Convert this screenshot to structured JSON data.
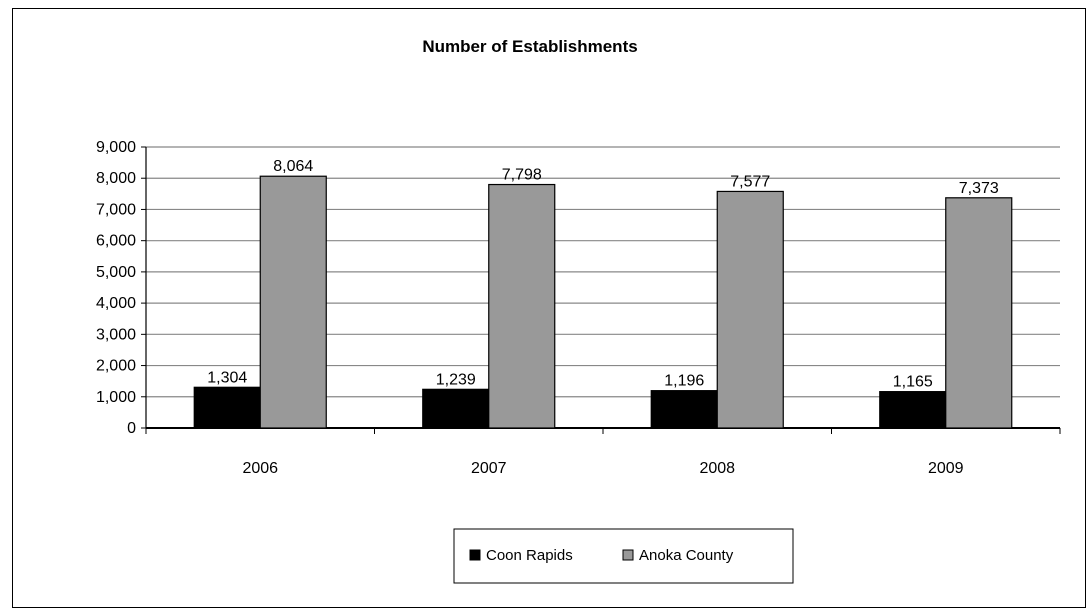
{
  "chart_data": {
    "type": "bar",
    "title": "Number of Establishments",
    "xlabel": "",
    "ylabel": "",
    "categories": [
      "2006",
      "2007",
      "2008",
      "2009"
    ],
    "series": [
      {
        "name": "Coon Rapids",
        "values": [
          1304,
          1239,
          1196,
          1165
        ],
        "labels": [
          "1,304",
          "1,239",
          "1,196",
          "1,165"
        ],
        "color": "#000000"
      },
      {
        "name": "Anoka County",
        "values": [
          8064,
          7798,
          7577,
          7373
        ],
        "labels": [
          "8,064",
          "7,798",
          "7,577",
          "7,373"
        ],
        "color": "#999999"
      }
    ],
    "ylim": [
      0,
      9000
    ],
    "yticks": [
      0,
      1000,
      2000,
      3000,
      4000,
      5000,
      6000,
      7000,
      8000,
      9000
    ],
    "ytick_labels": [
      "0",
      "1,000",
      "2,000",
      "3,000",
      "4,000",
      "5,000",
      "6,000",
      "7,000",
      "8,000",
      "9,000"
    ],
    "grid": true,
    "legend_position": "bottom"
  }
}
